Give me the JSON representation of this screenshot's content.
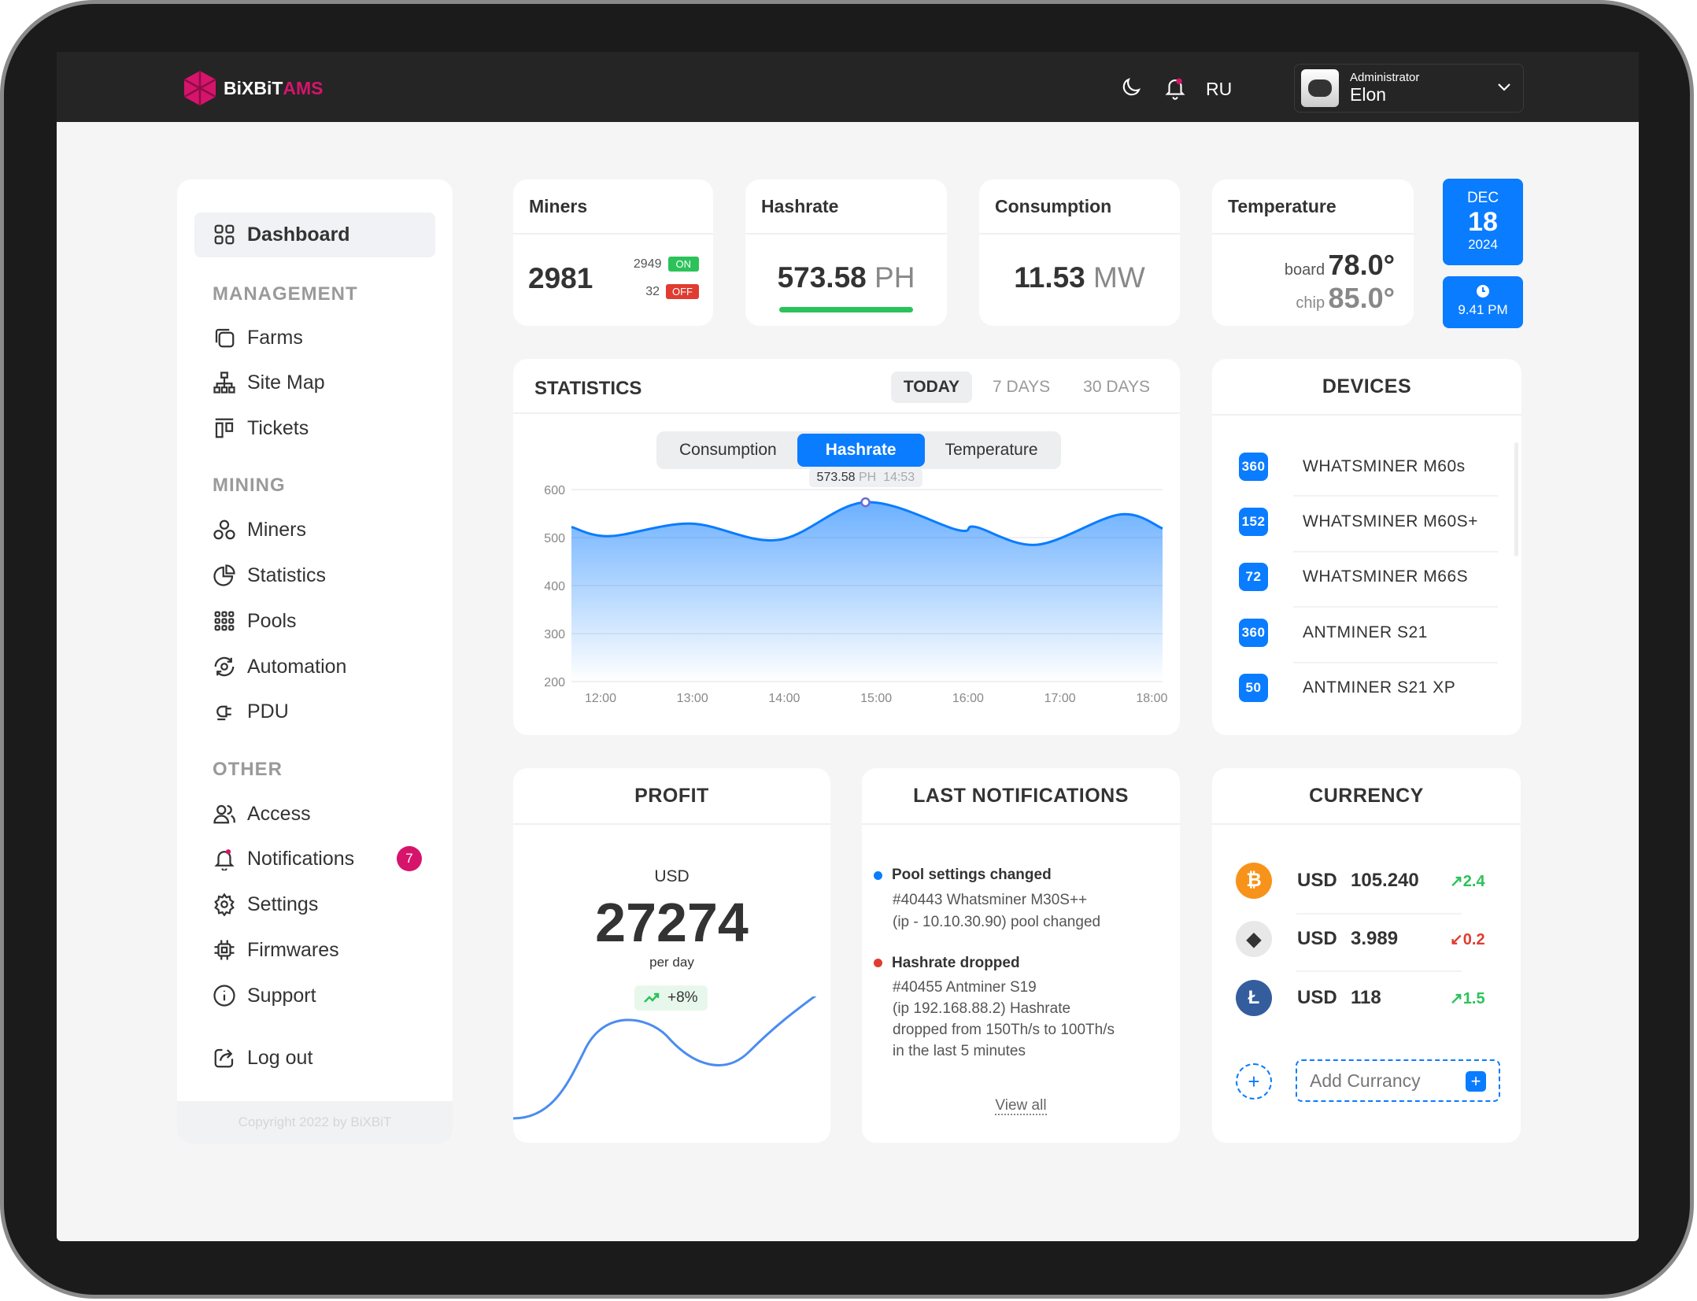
{
  "header": {
    "brand_part1": "BiXBiT",
    "brand_part2": "AMS",
    "language": "RU",
    "user_role": "Administrator",
    "user_name": "Elon",
    "brand_color": "#d6146b"
  },
  "sidebar": {
    "active": "Dashboard",
    "dashboard": "Dashboard",
    "sections": [
      {
        "title": "MANAGEMENT",
        "items": [
          {
            "label": "Farms",
            "icon": "farms-icon"
          },
          {
            "label": "Site Map",
            "icon": "sitemap-icon"
          },
          {
            "label": "Tickets",
            "icon": "tickets-icon"
          }
        ]
      },
      {
        "title": "MINING",
        "items": [
          {
            "label": "Miners",
            "icon": "miners-icon"
          },
          {
            "label": "Statistics",
            "icon": "pie-chart-icon"
          },
          {
            "label": "Pools",
            "icon": "pools-grid-icon"
          },
          {
            "label": "Automation",
            "icon": "automation-gear-icon"
          },
          {
            "label": "PDU",
            "icon": "pdu-plug-icon"
          }
        ]
      },
      {
        "title": "OTHER",
        "items": [
          {
            "label": "Access",
            "icon": "users-icon"
          },
          {
            "label": "Notifications",
            "icon": "bell-icon",
            "badge": "7"
          },
          {
            "label": "Settings",
            "icon": "gear-icon"
          },
          {
            "label": "Firmwares",
            "icon": "chip-icon"
          },
          {
            "label": "Support",
            "icon": "info-icon"
          }
        ]
      }
    ],
    "logout": "Log out",
    "copyright": "Copyright 2022 by BiXBiT"
  },
  "stats": {
    "miners": {
      "title": "Miners",
      "total": "2981",
      "on_count": "2949",
      "on_label": "ON",
      "off_count": "32",
      "off_label": "OFF"
    },
    "hashrate": {
      "title": "Hashrate",
      "value": "573.58",
      "unit": "PH"
    },
    "consumption": {
      "title": "Consumption",
      "value": "11.53",
      "unit": "MW"
    },
    "temperature": {
      "title": "Temperature",
      "board_label": "board",
      "board_value": "78.0°",
      "chip_label": "chip",
      "chip_value": "85.0°"
    },
    "date": {
      "month": "DEC",
      "day": "18",
      "year": "2024"
    },
    "time": "9.41 PM"
  },
  "statistics": {
    "title": "STATISTICS",
    "ranges": [
      "TODAY",
      "7 DAYS",
      "30 DAYS"
    ],
    "active_range": "TODAY",
    "metrics": [
      "Consumption",
      "Hashrate",
      "Temperature"
    ],
    "active_metric": "Hashrate",
    "tooltip": {
      "value": "573.58",
      "unit": "PH",
      "time": "14:53"
    }
  },
  "chart_data": {
    "type": "area",
    "x": [
      "11:41",
      "12:06",
      "12:59",
      "13:56",
      "14:53",
      "15:53",
      "16:05",
      "16:45",
      "17:39",
      "18:07"
    ],
    "series": [
      {
        "values": [
          522,
          503,
          529,
          495,
          573.58,
          516,
          522,
          485,
          548,
          519
        ]
      }
    ],
    "x_ticks": [
      "12:00",
      "13:00",
      "14:00",
      "15:00",
      "16:00",
      "17:00",
      "18:00"
    ],
    "y_ticks": [
      600,
      500,
      400,
      300,
      200
    ],
    "ylim": [
      200,
      600
    ],
    "grid": true,
    "color": "#0a7cff",
    "highlight": {
      "x": "14:53",
      "y": 573.58
    }
  },
  "devices": {
    "title": "DEVICES",
    "items": [
      {
        "count": "360",
        "name": "WHATSMINER M60s"
      },
      {
        "count": "152",
        "name": "WHATSMINER M60S+"
      },
      {
        "count": "72",
        "name": "WHATSMINER M66S"
      },
      {
        "count": "360",
        "name": "ANTMINER S21"
      },
      {
        "count": "50",
        "name": "ANTMINER S21 XP"
      }
    ]
  },
  "profit": {
    "title": "PROFIT",
    "currency": "USD",
    "value": "27274",
    "period": "per day",
    "change": "+8%"
  },
  "notifications": {
    "title": "LAST NOTIFICATIONS",
    "items": [
      {
        "title": "Pool settings changed",
        "color": "#0a7cff",
        "lines": [
          "#40443 Whatsminer M30S++",
          "(ip - 10.10.30.90) pool changed"
        ]
      },
      {
        "title": "Hashrate dropped",
        "color": "#e03c31",
        "lines": [
          "#40455 Antminer S19",
          "(ip 192.168.88.2) Hashrate",
          "dropped from 150Th/s to 100Th/s",
          "in the last 5 minutes"
        ]
      }
    ],
    "view_all": "View all"
  },
  "currency": {
    "title": "CURRENCY",
    "items": [
      {
        "coin": "bitcoin-icon",
        "symbol": "₿",
        "color": "#f7931a",
        "base": "USD",
        "price": "105.240",
        "change": "2.4",
        "trend": "up"
      },
      {
        "coin": "ethereum-icon",
        "symbol": "◆",
        "color": "#e6e6e6",
        "base": "USD",
        "price": "3.989",
        "change": "0.2",
        "trend": "down"
      },
      {
        "coin": "litecoin-icon",
        "symbol": "Ł",
        "color": "#345d9d",
        "base": "USD",
        "price": "118",
        "change": "1.5",
        "trend": "up"
      }
    ],
    "add_label": "Add Currancy"
  }
}
